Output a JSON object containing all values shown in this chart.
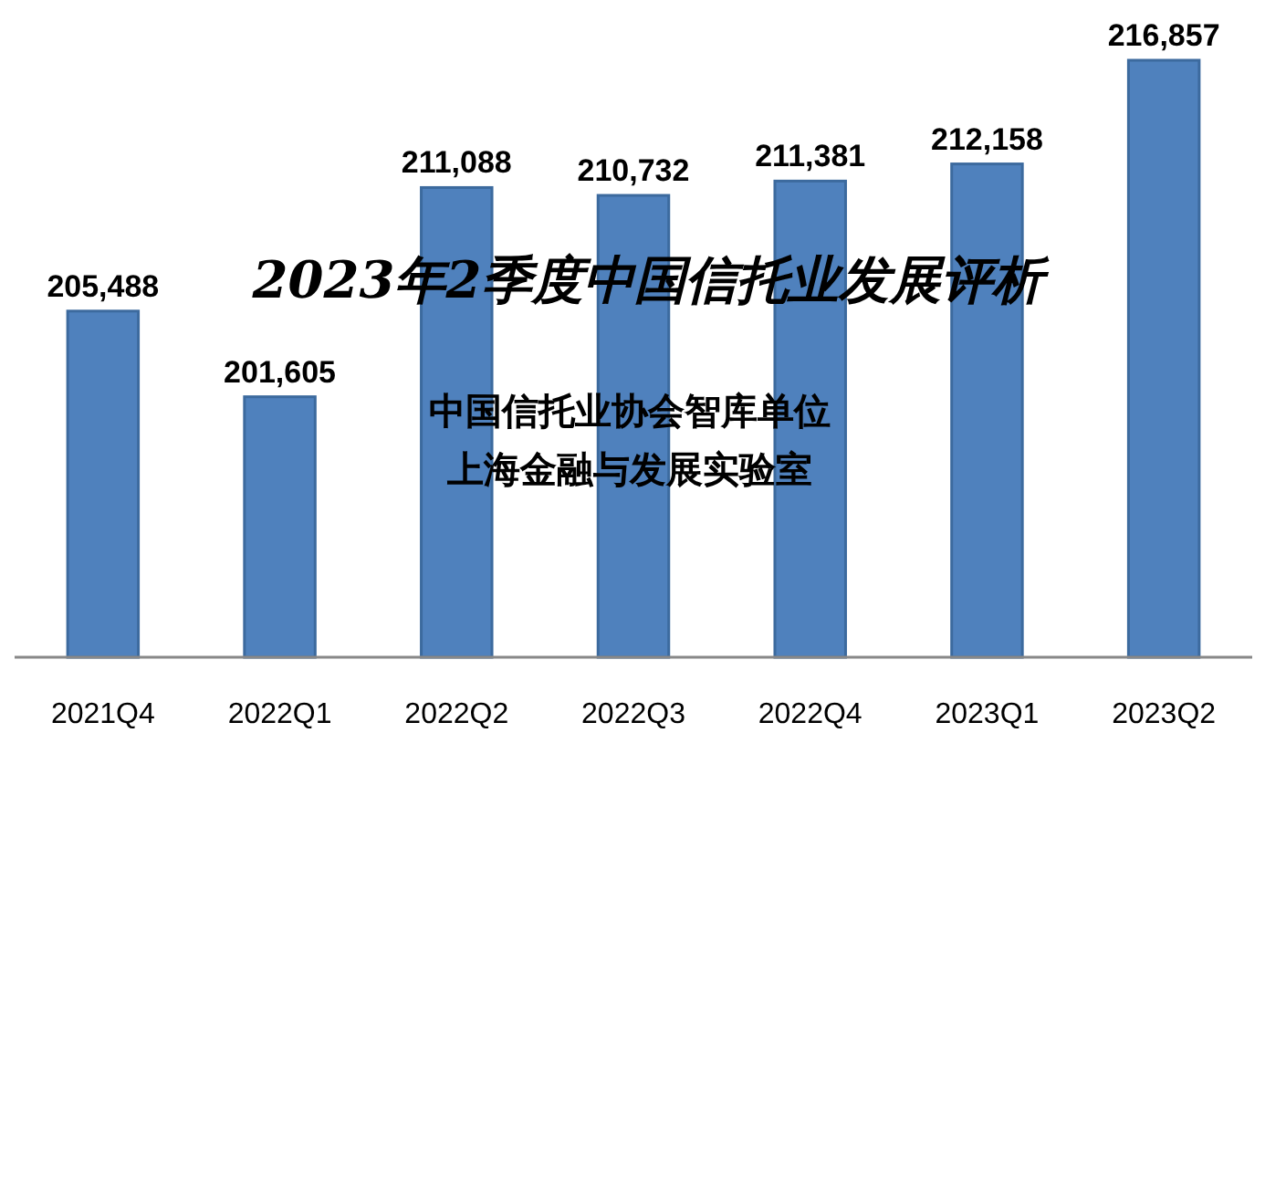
{
  "chart_data": {
    "type": "bar",
    "title": "2023年2季度中国信托业发展评析",
    "annotations": [
      "中国信托业协会智库单位",
      "上海金融与发展实验室"
    ],
    "categories": [
      "2021Q4",
      "2022Q1",
      "2022Q2",
      "2022Q3",
      "2022Q4",
      "2023Q1",
      "2023Q2"
    ],
    "values": [
      205488,
      201605,
      211088,
      210732,
      211381,
      212158,
      216857
    ],
    "value_labels": [
      "205,488",
      "201,605",
      "211,088",
      "210,732",
      "211,381",
      "212,158",
      "216,857"
    ],
    "color": "#4f81bd",
    "ylim": [
      189800,
      216857
    ]
  }
}
